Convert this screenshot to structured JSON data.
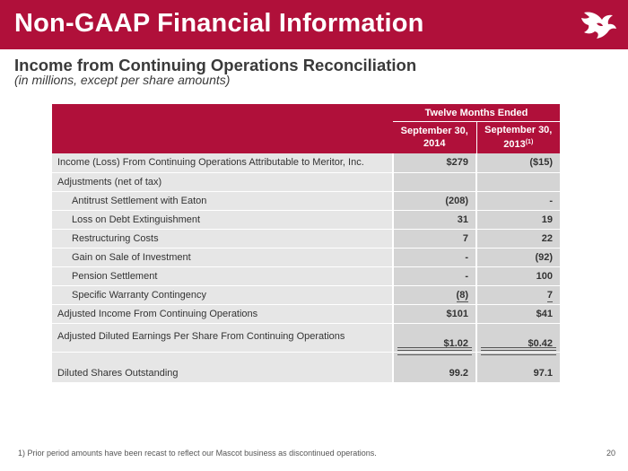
{
  "header": {
    "title": "Non-GAAP Financial Information",
    "brand_color": "#b0103a"
  },
  "logo": {
    "icon": "winged-bull-logo"
  },
  "subtitle": "Income from Continuing Operations Reconciliation",
  "subtitle_note": "(in millions, except per share amounts)",
  "table": {
    "group_header": "Twelve Months Ended",
    "col1_header_line1": "September 30,",
    "col1_header_line2": "2014",
    "col2_header_line1": "September 30,",
    "col2_header_line2": "2013",
    "col2_header_sup": "(1)",
    "rows": [
      {
        "label": "Income (Loss) From Continuing Operations Attributable to Meritor, Inc.",
        "v2014": "$279",
        "v2013": "($15)"
      },
      {
        "label": "Adjustments (net of tax)",
        "v2014": "",
        "v2013": ""
      },
      {
        "label": "Antitrust Settlement with Eaton",
        "v2014": "(208)",
        "v2013": "-"
      },
      {
        "label": "Loss on Debt Extinguishment",
        "v2014": "31",
        "v2013": "19"
      },
      {
        "label": "Restructuring Costs",
        "v2014": "7",
        "v2013": "22"
      },
      {
        "label": "Gain on Sale of Investment",
        "v2014": "-",
        "v2013": "(92)"
      },
      {
        "label": "Pension Settlement",
        "v2014": "-",
        "v2013": "100"
      },
      {
        "label": "Specific Warranty Contingency",
        "v2014": "(8)",
        "v2013": "7"
      },
      {
        "label": "Adjusted Income From Continuing Operations",
        "v2014": "$101",
        "v2013": "$41"
      },
      {
        "label": "Adjusted Diluted Earnings Per Share From Continuing Operations",
        "v2014": "$1.02",
        "v2013": "$0.42"
      },
      {
        "label": "Diluted Shares Outstanding",
        "v2014": "99.2",
        "v2013": "97.1"
      }
    ]
  },
  "footnote": "1)  Prior period amounts have been recast to reflect our Mascot business as discontinued operations.",
  "page_number": "20"
}
